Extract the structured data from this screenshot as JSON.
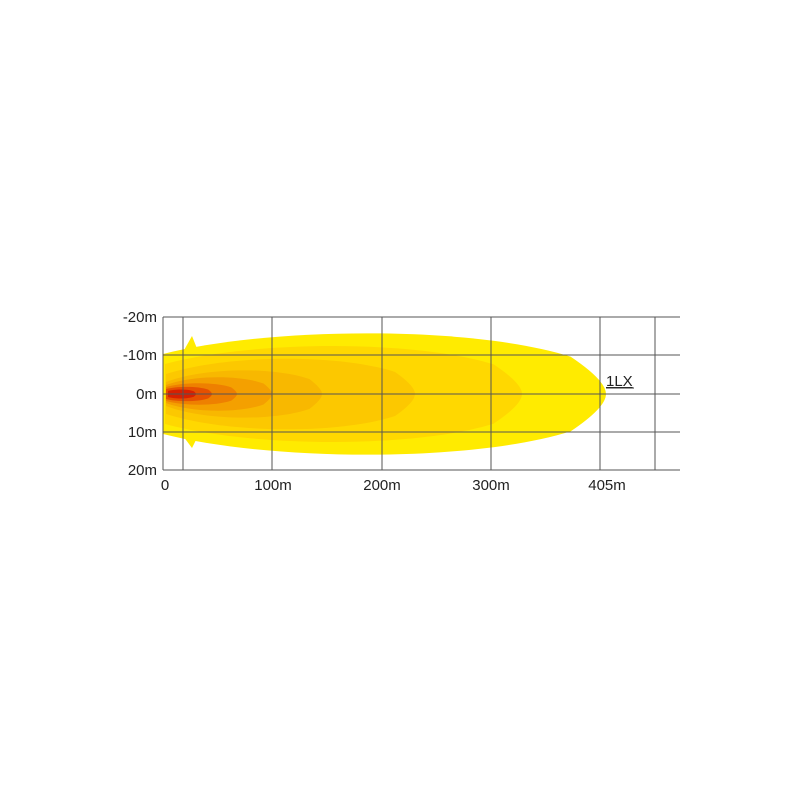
{
  "chart_data": {
    "type": "heatmap",
    "title": "",
    "x_ticks": [
      "0",
      "100m",
      "200m",
      "300m",
      "405m"
    ],
    "y_ticks": [
      "-20m",
      "-10m",
      "0m",
      "10m",
      "20m"
    ],
    "grid": true,
    "annotation": "1LX",
    "max_distance_m": 405,
    "contour_colors": [
      "#ffeb00",
      "#ffd800",
      "#fcc800",
      "#f8b800",
      "#f4a000",
      "#ee8000",
      "#e55000",
      "#d82000"
    ]
  }
}
